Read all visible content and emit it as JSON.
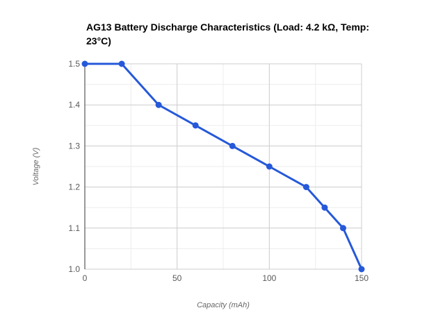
{
  "chart_data": {
    "type": "line",
    "title": "AG13 Battery Discharge Characteristics (Load: 4.2 kΩ, Temp: 23°C)",
    "xlabel": "Capacity (mAh)",
    "ylabel": "Voltage (V)",
    "x": [
      0,
      20,
      40,
      60,
      80,
      100,
      120,
      130,
      140,
      150
    ],
    "y": [
      1.5,
      1.5,
      1.4,
      1.35,
      1.3,
      1.25,
      1.2,
      1.15,
      1.1,
      1.0
    ],
    "xlim": [
      0,
      150
    ],
    "ylim": [
      1.0,
      1.5
    ],
    "x_ticks": {
      "values": [
        0,
        50,
        100,
        150
      ],
      "labels": [
        "0",
        "50",
        "100",
        "150"
      ]
    },
    "y_ticks": {
      "values": [
        1.0,
        1.1,
        1.2,
        1.3,
        1.4,
        1.5
      ],
      "labels": [
        "1.0",
        "1.1",
        "1.2",
        "1.3",
        "1.4",
        "1.5"
      ]
    },
    "x_minor_gridlines": [
      25,
      75,
      125
    ],
    "y_minor_gridlines": [
      1.05,
      1.15,
      1.25,
      1.35,
      1.45
    ],
    "grid": "horizontal and vertical, major and minor",
    "legend": "none",
    "marker": "circle",
    "colors": {
      "series": "#2659d9",
      "grid_major": "#cccccc",
      "grid_minor": "#ededed",
      "axis_line": "#333333",
      "tick_label": "#595959",
      "axis_title": "#666666",
      "title": "#000000",
      "background": "#ffffff"
    }
  }
}
